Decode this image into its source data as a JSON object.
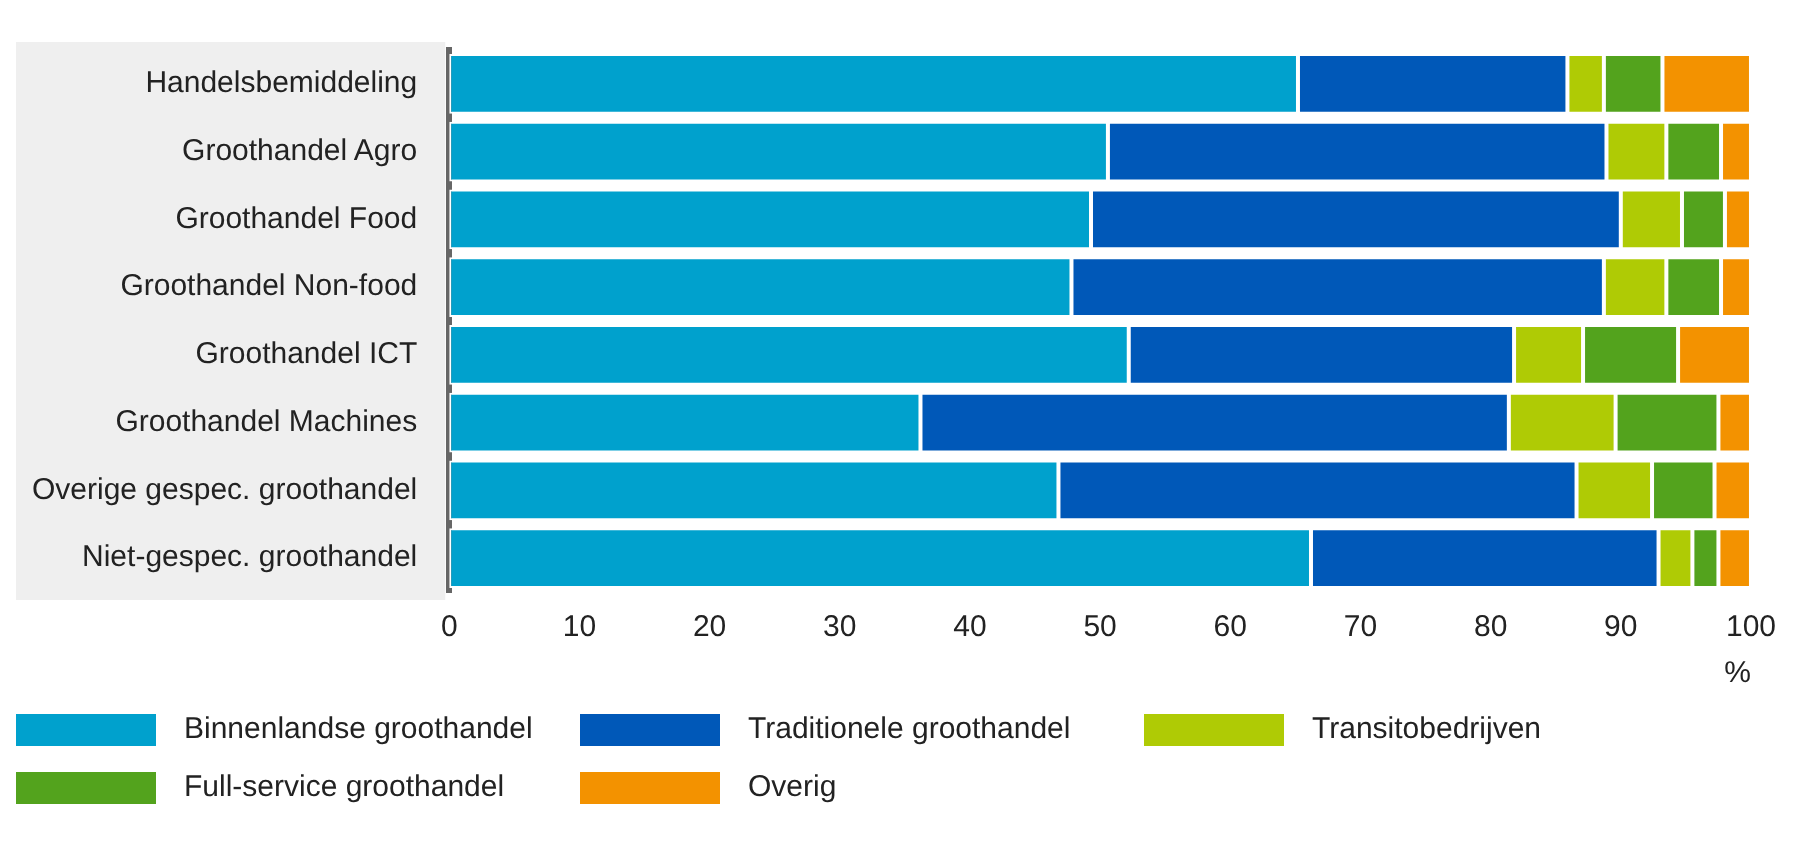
{
  "chart_data": {
    "type": "bar",
    "orientation": "horizontal",
    "stacked": true,
    "xlabel": "%",
    "categories": [
      "Handelsbemiddeling",
      "Groothandel Agro",
      "Groothandel Food",
      "Groothandel Non-food",
      "Groothandel ICT",
      "Groothandel Machines",
      "Overige gespec. groothandel",
      "Niet-gespec. groothandel"
    ],
    "series": [
      {
        "name": "Binnenlandse groothandel",
        "color": "#00a1cd",
        "values": [
          65.2,
          50.6,
          49.3,
          47.8,
          52.2,
          36.2,
          46.8,
          66.2
        ]
      },
      {
        "name": "Traditionele groothandel",
        "color": "#0058b8",
        "values": [
          20.7,
          38.3,
          40.7,
          40.9,
          29.6,
          45.2,
          39.8,
          26.7
        ]
      },
      {
        "name": "Transitobedrijven",
        "color": "#afcb05",
        "values": [
          2.8,
          4.6,
          4.7,
          4.8,
          5.3,
          8.2,
          5.8,
          2.6
        ]
      },
      {
        "name": "Full-service groothandel",
        "color": "#53a31d",
        "values": [
          4.5,
          4.2,
          3.3,
          4.2,
          7.3,
          7.9,
          4.8,
          2.0
        ]
      },
      {
        "name": "Overig",
        "color": "#f39200",
        "values": [
          6.8,
          2.3,
          2.0,
          2.3,
          5.6,
          2.5,
          2.8,
          2.5
        ]
      }
    ],
    "xlim": [
      0,
      100
    ],
    "xticks": [
      0,
      10,
      20,
      30,
      40,
      50,
      60,
      70,
      80,
      90,
      100
    ],
    "grid": false,
    "legend": "bottom"
  }
}
